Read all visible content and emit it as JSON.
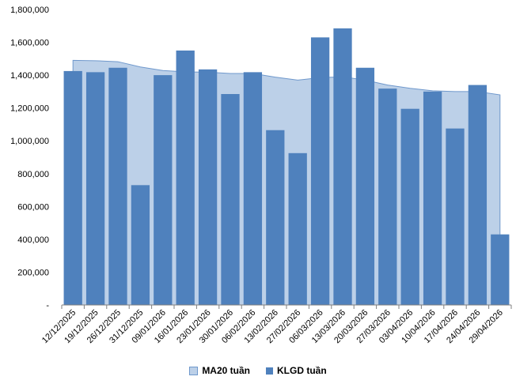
{
  "chart_data": {
    "type": "bar",
    "categories": [
      "12/12/2025",
      "19/12/2025",
      "26/12/2025",
      "31/12/2025",
      "09/01/2026",
      "16/01/2026",
      "23/01/2026",
      "30/01/2026",
      "06/02/2026",
      "13/02/2026",
      "27/02/2026",
      "06/03/2026",
      "13/03/2026",
      "20/03/2026",
      "27/03/2026",
      "03/04/2026",
      "10/04/2026",
      "17/04/2026",
      "24/04/2026",
      "29/04/2026"
    ],
    "series": [
      {
        "name": "MA20 tuần",
        "kind": "area",
        "color": "#bcd0e8",
        "values": [
          1490000,
          1488000,
          1482000,
          1450000,
          1428000,
          1420000,
          1418000,
          1410000,
          1410000,
          1388000,
          1370000,
          1385000,
          1390000,
          1370000,
          1340000,
          1320000,
          1305000,
          1300000,
          1300000,
          1280000
        ]
      },
      {
        "name": "KLGD tuần",
        "kind": "bar",
        "color": "#4f81bd",
        "values": [
          1425000,
          1418000,
          1445000,
          730000,
          1400000,
          1550000,
          1435000,
          1285000,
          1418000,
          1065000,
          925000,
          1630000,
          1685000,
          1445000,
          1318000,
          1195000,
          1300000,
          1075000,
          1340000,
          430000
        ]
      }
    ],
    "y_ticks": [
      "-",
      "200,000",
      "400,000",
      "600,000",
      "800,000",
      "1,000,000",
      "1,200,000",
      "1,400,000",
      "1,600,000",
      "1,800,000"
    ],
    "ylim": [
      0,
      1800000
    ],
    "legend_position": "bottom"
  }
}
